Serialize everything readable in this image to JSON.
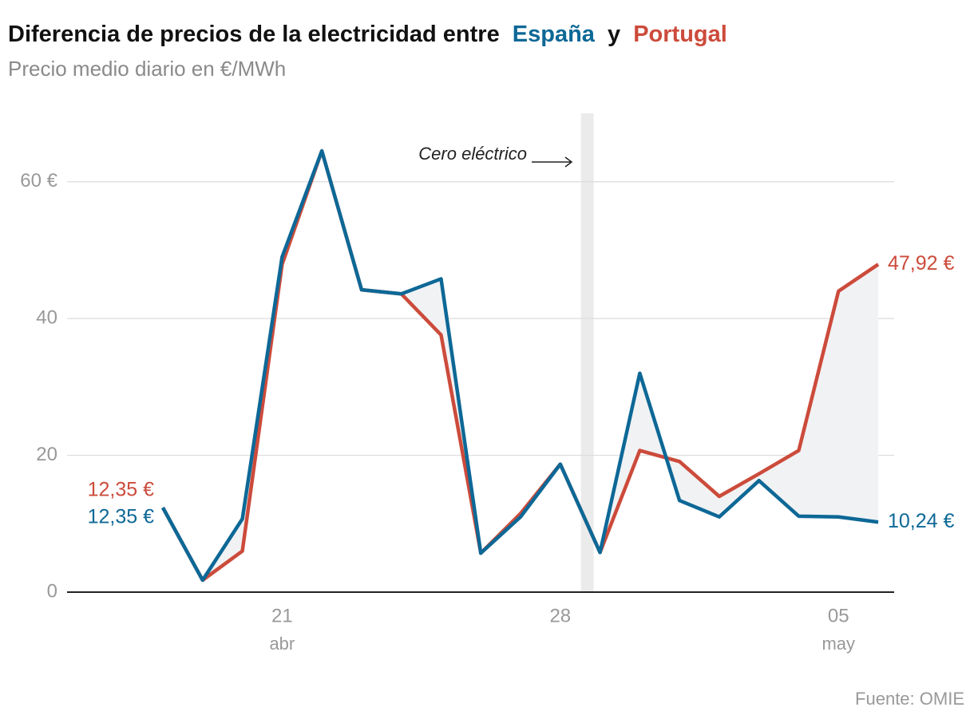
{
  "chart_data": {
    "type": "line",
    "title": {
      "before": "Diferencia de precios de la electricidad entre",
      "between": "y"
    },
    "subtitle": "Precio medio diario en €/MWh",
    "source": "Fuente: OMIE",
    "x": [
      "04-18",
      "04-19",
      "04-20",
      "04-21",
      "04-22",
      "04-23",
      "04-24",
      "04-25",
      "04-26",
      "04-27",
      "04-28",
      "04-29",
      "04-30",
      "05-01",
      "05-02",
      "05-03",
      "05-04",
      "05-05",
      "05-06"
    ],
    "xticks": [
      {
        "value": "04-21",
        "label": "21",
        "sublabel": "abr"
      },
      {
        "value": "04-28",
        "label": "28"
      },
      {
        "value": "05-05",
        "label": "05",
        "sublabel": "may"
      }
    ],
    "series": [
      {
        "name": "Portugal",
        "color": "#cc4b3b",
        "values": [
          12.35,
          1.75,
          6.0,
          47.9,
          64.5,
          44.2,
          43.6,
          37.6,
          5.7,
          11.5,
          18.7,
          5.8,
          20.7,
          19.1,
          14.0,
          17.3,
          20.7,
          44.0,
          47.92
        ],
        "value_labels": [
          "12,35 €",
          null,
          null,
          null,
          null,
          null,
          null,
          null,
          null,
          null,
          null,
          null,
          null,
          null,
          null,
          null,
          null,
          null,
          "47,92 €"
        ]
      },
      {
        "name": "España",
        "color": "#0d6896",
        "values": [
          12.35,
          1.75,
          10.7,
          49.0,
          64.5,
          44.2,
          43.6,
          45.8,
          5.7,
          11.0,
          18.7,
          5.8,
          32.0,
          13.4,
          11.0,
          16.3,
          11.1,
          11.0,
          10.24
        ],
        "value_labels": [
          "12,35 €",
          null,
          null,
          null,
          null,
          null,
          null,
          null,
          null,
          null,
          null,
          null,
          null,
          null,
          null,
          null,
          null,
          null,
          "10,24 €"
        ]
      }
    ],
    "highlight": {
      "x": "04-28",
      "label": "Cero eléctrico"
    },
    "ylim": [
      0,
      70
    ],
    "yticks": [
      0,
      20,
      40,
      {
        "value": 60,
        "label": "60 €"
      }
    ],
    "grid": true
  }
}
